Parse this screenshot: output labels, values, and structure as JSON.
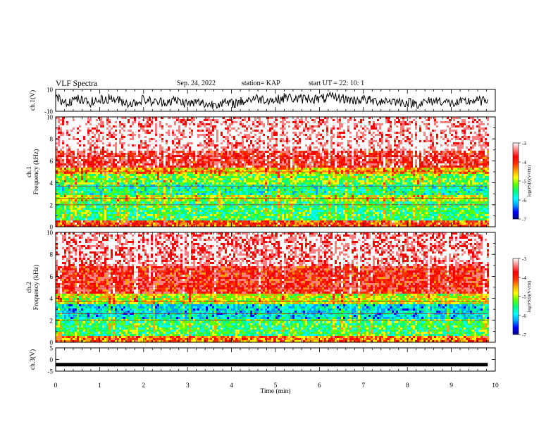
{
  "header": {
    "title": "VLF Spectra",
    "date": "Sep. 24, 2022",
    "station": "station= KAP",
    "start": "start  UT  =   22: 10: 1"
  },
  "colors": {
    "trace": "#000000",
    "cbar": [
      "#000080",
      "#0000ff",
      "#00a0ff",
      "#00ffff",
      "#00ff80",
      "#60ff00",
      "#ffff00",
      "#ffa000",
      "#ff3000",
      "#ff0000",
      "#ff8080",
      "#ffffff"
    ]
  },
  "chart_data": [
    {
      "type": "line",
      "panel": "ch1-waveform",
      "ylabel": "ch.1(V)",
      "ylim": [
        -10,
        10
      ],
      "yticks": [
        -10,
        10
      ],
      "xlim": [
        0,
        10
      ],
      "x": [
        0,
        0.25,
        0.5,
        0.75,
        1.0,
        1.25,
        1.5,
        1.75,
        2.0,
        2.25,
        2.5,
        2.75,
        3.0,
        3.25,
        3.5,
        3.75,
        4.0,
        4.25,
        4.5,
        4.75,
        5.0,
        5.25,
        5.5,
        5.75,
        6.0,
        6.25,
        6.5,
        6.75,
        7.0,
        7.25,
        7.5,
        7.75,
        8.0,
        8.25,
        8.5,
        8.75,
        9.0,
        9.25,
        9.5,
        9.75,
        9.83
      ],
      "y": [
        2,
        -1,
        1,
        -2,
        0,
        2,
        -1,
        -3,
        1,
        -2,
        -1,
        0,
        -3,
        -2,
        -4,
        -2,
        -3,
        -1,
        2,
        1,
        0,
        3,
        1,
        2,
        1,
        3,
        2,
        0,
        1,
        -1,
        0,
        -1,
        -2,
        -3,
        -1,
        0,
        -3,
        -2,
        0,
        -1,
        1
      ]
    },
    {
      "type": "heatmap",
      "panel": "ch1-spectrogram",
      "ylabel": "ch.1\nFrequency (kHz)",
      "ylim": [
        0,
        10
      ],
      "yticks": [
        0,
        2,
        4,
        6,
        8,
        10
      ],
      "xlim": [
        0,
        10
      ],
      "colorbar": {
        "label": "log(PSD)(V²/Hz)",
        "ticks": [
          -3,
          -4,
          -5,
          -6,
          -7
        ],
        "range": [
          -7,
          -3
        ]
      },
      "bands_khz": [
        {
          "from": 7.0,
          "to": 10.0,
          "level": -3.3
        },
        {
          "from": 5.3,
          "to": 7.0,
          "level": -3.8
        },
        {
          "from": 4.8,
          "to": 5.3,
          "level": -4.6
        },
        {
          "from": 3.8,
          "to": 4.8,
          "level": -5.2
        },
        {
          "from": 2.8,
          "to": 3.8,
          "level": -5.6
        },
        {
          "from": 2.3,
          "to": 2.8,
          "level": -5.0
        },
        {
          "from": 0.5,
          "to": 2.3,
          "level": -5.4
        },
        {
          "from": 0.0,
          "to": 0.5,
          "level": -4.2
        }
      ]
    },
    {
      "type": "heatmap",
      "panel": "ch2-spectrogram",
      "ylabel": "ch.2\nFrequency (kHz)",
      "ylim": [
        0,
        10
      ],
      "yticks": [
        0,
        2,
        4,
        6,
        8,
        10
      ],
      "xlim": [
        0,
        10
      ],
      "colorbar": {
        "label": "log(PSD)(V²/Hz)",
        "ticks": [
          -3,
          -4,
          -5,
          -6,
          -7
        ],
        "range": [
          -7,
          -3
        ]
      },
      "bands_khz": [
        {
          "from": 7.0,
          "to": 10.0,
          "level": -3.4
        },
        {
          "from": 4.5,
          "to": 7.0,
          "level": -3.9
        },
        {
          "from": 3.5,
          "to": 4.5,
          "level": -4.9
        },
        {
          "from": 2.2,
          "to": 3.5,
          "level": -5.9
        },
        {
          "from": 0.5,
          "to": 2.2,
          "level": -5.4
        },
        {
          "from": 0.0,
          "to": 0.5,
          "level": -4.4
        }
      ]
    },
    {
      "type": "line",
      "panel": "ch3-waveform",
      "ylabel": "ch.3(V)",
      "ylim": [
        -5,
        5
      ],
      "yticks": [
        -5,
        0,
        5
      ],
      "xlim": [
        0,
        10
      ],
      "xlabel": "Time (min)",
      "xticks": [
        0,
        1,
        2,
        3,
        4,
        5,
        6,
        7,
        8,
        9,
        10
      ],
      "x": [
        0,
        9.83
      ],
      "y": [
        -2.2,
        -2.2
      ]
    }
  ]
}
